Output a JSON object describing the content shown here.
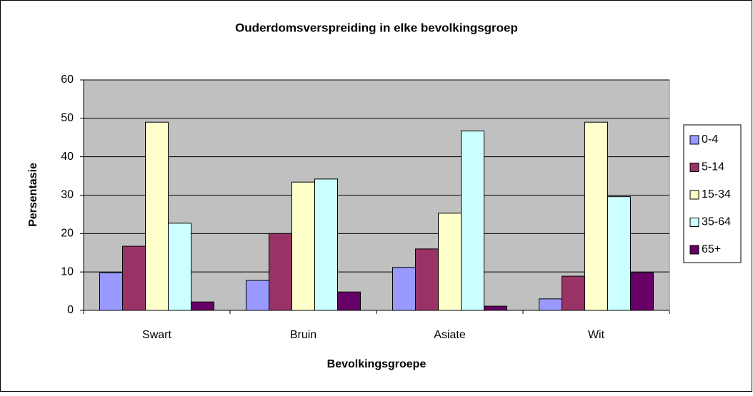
{
  "chart_data": {
    "type": "bar",
    "title": "Ouderdomsverspreiding in elke bevolkingsgroep",
    "x_label": "Bevolkingsgroepe",
    "y_label": "Persentasie",
    "categories": [
      "Swart",
      "Bruin",
      "Asiate",
      "Wit"
    ],
    "series": [
      {
        "name": "0-4",
        "color": "#9999ff",
        "values": [
          9.8,
          7.8,
          11.2,
          3.0
        ]
      },
      {
        "name": "5-14",
        "color": "#993366",
        "values": [
          16.7,
          20.0,
          16.0,
          8.9
        ]
      },
      {
        "name": "15-34",
        "color": "#ffffcc",
        "values": [
          49.0,
          33.4,
          25.3,
          49.0
        ]
      },
      {
        "name": "35-64",
        "color": "#ccffff",
        "values": [
          22.7,
          34.2,
          46.7,
          29.6
        ]
      },
      {
        "name": "65+",
        "color": "#660066",
        "values": [
          2.2,
          4.8,
          1.1,
          9.8
        ]
      }
    ],
    "ylim": [
      0,
      60
    ],
    "yticks": [
      0,
      10,
      20,
      30,
      40,
      50,
      60
    ],
    "grid": true,
    "legend": "right"
  }
}
